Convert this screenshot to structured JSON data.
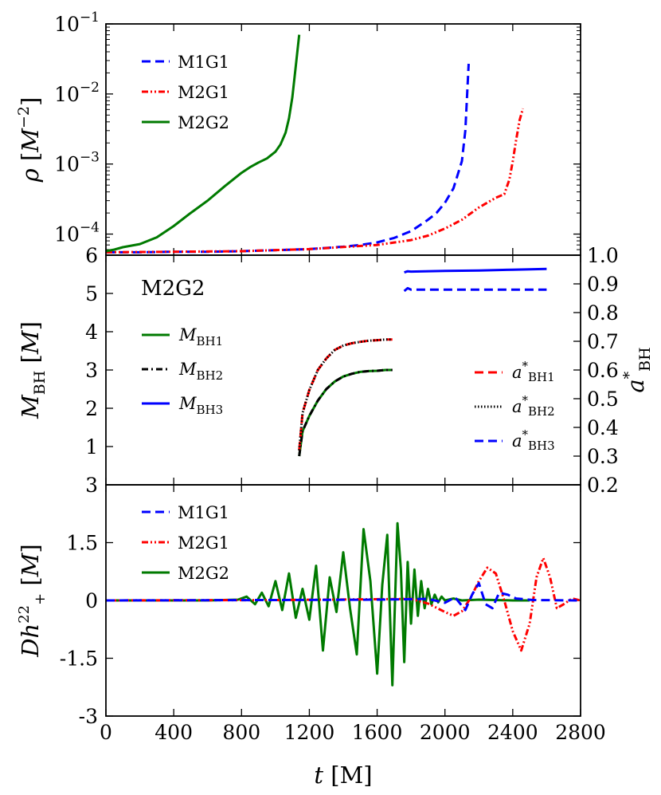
{
  "chart_data": [
    {
      "type": "line",
      "panel": "density",
      "ylabel": "ρ [M⁻²]",
      "ylabel_parts": {
        "sym": "ρ",
        "unit_open": "[",
        "unit": "M",
        "unit_exp": "−2",
        "unit_close": "]"
      },
      "yscale": "log",
      "ylim": [
        5e-05,
        0.1
      ],
      "xlim": [
        0,
        2800
      ],
      "yticks": [
        {
          "value": 0.1,
          "base": "10",
          "exp": "−1"
        },
        {
          "value": 0.01,
          "base": "10",
          "exp": "−2"
        },
        {
          "value": 0.001,
          "base": "10",
          "exp": "−3"
        },
        {
          "value": 0.0001,
          "base": "10",
          "exp": "−4"
        }
      ],
      "legend_position": "top-left",
      "series": [
        {
          "name": "M1G1",
          "color": "#0000ff",
          "style": "dashed",
          "x": [
            0,
            200,
            400,
            600,
            800,
            1000,
            1200,
            1400,
            1500,
            1600,
            1700,
            1800,
            1900,
            1950,
            2000,
            2050,
            2100,
            2120,
            2140
          ],
          "y": [
            5.5e-05,
            5.5e-05,
            5.6e-05,
            5.6e-05,
            5.7e-05,
            5.9e-05,
            6.1e-05,
            6.6e-05,
            7e-05,
            7.6e-05,
            8.8e-05,
            0.00011,
            0.00016,
            0.0002,
            0.00028,
            0.00045,
            0.0011,
            0.003,
            0.027
          ]
        },
        {
          "name": "M2G1",
          "color": "#ff0000",
          "style": "dash-dot-dot",
          "x": [
            0,
            400,
            800,
            1200,
            1600,
            1800,
            1900,
            2000,
            2100,
            2200,
            2300,
            2350,
            2380,
            2400,
            2420,
            2440,
            2460
          ],
          "y": [
            5.5e-05,
            5.6e-05,
            5.7e-05,
            6.1e-05,
            7e-05,
            8.2e-05,
            9.5e-05,
            0.00012,
            0.00016,
            0.00024,
            0.00033,
            0.00037,
            0.0006,
            0.0011,
            0.0022,
            0.0042,
            0.0062
          ]
        },
        {
          "name": "M2G2",
          "color": "#007a00",
          "style": "solid",
          "x": [
            0,
            50,
            100,
            200,
            300,
            400,
            500,
            600,
            700,
            800,
            850,
            900,
            950,
            1000,
            1030,
            1060,
            1080,
            1100,
            1120,
            1140
          ],
          "y": [
            5.7e-05,
            6e-05,
            6.5e-05,
            7.2e-05,
            9e-05,
            0.00013,
            0.0002,
            0.0003,
            0.00048,
            0.00075,
            0.0009,
            0.00105,
            0.0012,
            0.0015,
            0.0019,
            0.0028,
            0.0045,
            0.009,
            0.025,
            0.07
          ]
        }
      ]
    },
    {
      "type": "line",
      "panel": "black-hole",
      "annotation": "M2G2",
      "ylabel": "M_BH [M]",
      "ylabel_parts": {
        "sym": "M",
        "sub": "BH",
        "unit": "[M]"
      },
      "y2label": "a*_BH",
      "y2label_parts": {
        "sym": "a",
        "sup": "*",
        "sub": "BH"
      },
      "ylim": [
        0,
        6
      ],
      "y2lim": [
        0.2,
        1.0
      ],
      "xlim": [
        0,
        2800
      ],
      "yticks": [
        "6",
        "5",
        "4",
        "3",
        "2",
        "1"
      ],
      "y2ticks": [
        "1.0",
        "0.9",
        "0.8",
        "0.7",
        "0.6",
        "0.5",
        "0.4",
        "0.3",
        "0.2"
      ],
      "legend_left": [
        {
          "sym": "M",
          "sub": "BH1",
          "color": "#007a00",
          "style": "solid"
        },
        {
          "sym": "M",
          "sub": "BH2",
          "color": "#000000",
          "style": "dash-dot"
        },
        {
          "sym": "M",
          "sub": "BH3",
          "color": "#0000ff",
          "style": "solid"
        }
      ],
      "legend_right": [
        {
          "sym": "a",
          "sup": "*",
          "sub": "BH1",
          "color": "#ff0000",
          "style": "dashed"
        },
        {
          "sym": "a",
          "sup": "*",
          "sub": "BH2",
          "color": "#000000",
          "style": "dotted"
        },
        {
          "sym": "a",
          "sup": "*",
          "sub": "BH3",
          "color": "#0000ff",
          "style": "dashed"
        }
      ],
      "series": [
        {
          "name": "M_BH1",
          "axis": "left",
          "color": "#007a00",
          "style": "solid",
          "x": [
            1140,
            1160,
            1200,
            1250,
            1300,
            1350,
            1400,
            1450,
            1500,
            1550,
            1600,
            1650,
            1690
          ],
          "y": [
            0.75,
            1.4,
            1.8,
            2.2,
            2.5,
            2.7,
            2.83,
            2.9,
            2.95,
            2.97,
            2.98,
            3.0,
            3.0
          ]
        },
        {
          "name": "M_BH2",
          "axis": "left",
          "color": "#000000",
          "style": "dash-dot",
          "x": [
            1140,
            1160,
            1200,
            1250,
            1300,
            1350,
            1400,
            1450,
            1500,
            1550,
            1600,
            1650,
            1690
          ],
          "y": [
            0.75,
            1.4,
            1.8,
            2.2,
            2.5,
            2.7,
            2.83,
            2.9,
            2.95,
            2.97,
            2.98,
            3.0,
            3.0
          ]
        },
        {
          "name": "M_BH3",
          "axis": "left",
          "color": "#0000ff",
          "style": "solid",
          "x": [
            1760,
            1780,
            1800,
            2000,
            2200,
            2400,
            2600
          ],
          "y": [
            5.55,
            5.58,
            5.57,
            5.59,
            5.6,
            5.62,
            5.64
          ]
        },
        {
          "name": "a*_BH1",
          "axis": "right",
          "color": "#ff0000",
          "style": "dashed",
          "x": [
            1140,
            1160,
            1200,
            1250,
            1300,
            1350,
            1400,
            1450,
            1500,
            1550,
            1600,
            1650,
            1690
          ],
          "y": [
            0.32,
            0.45,
            0.53,
            0.6,
            0.64,
            0.67,
            0.685,
            0.693,
            0.698,
            0.702,
            0.704,
            0.706,
            0.706
          ]
        },
        {
          "name": "a*_BH2",
          "axis": "right",
          "color": "#000000",
          "style": "dotted",
          "x": [
            1140,
            1160,
            1200,
            1250,
            1300,
            1350,
            1400,
            1450,
            1500,
            1550,
            1600,
            1650,
            1690
          ],
          "y": [
            0.32,
            0.45,
            0.53,
            0.6,
            0.64,
            0.67,
            0.685,
            0.693,
            0.698,
            0.702,
            0.704,
            0.706,
            0.706
          ]
        },
        {
          "name": "a*_BH3",
          "axis": "right",
          "color": "#0000ff",
          "style": "dashed",
          "x": [
            1760,
            1780,
            1800,
            2000,
            2200,
            2400,
            2600
          ],
          "y": [
            0.875,
            0.885,
            0.88,
            0.88,
            0.88,
            0.88,
            0.88
          ]
        }
      ]
    },
    {
      "type": "line",
      "panel": "waveform",
      "ylabel": "Dh₊²² [M]",
      "ylabel_parts": {
        "sym": "Dh",
        "sup": "22",
        "sub": "+",
        "unit": "[M]"
      },
      "ylim": [
        -3,
        3
      ],
      "xlim": [
        0,
        2800
      ],
      "yticks": [
        {
          "value": 3,
          "label": "3"
        },
        {
          "value": 1.5,
          "label": "1.5"
        },
        {
          "value": 0,
          "label": "0"
        },
        {
          "value": -1.5,
          "label": "-1.5"
        },
        {
          "value": -3,
          "label": "-3"
        }
      ],
      "xlabel": "t [M]",
      "xlabel_parts": {
        "sym": "t",
        "unit": "[M]"
      },
      "xticks": [
        "0",
        "400",
        "800",
        "1200",
        "1600",
        "2000",
        "2400",
        "2800"
      ],
      "legend_position": "top-left",
      "series": [
        {
          "name": "M1G1",
          "color": "#0000ff",
          "style": "dashed",
          "x": [
            0,
            1000,
            1600,
            1900,
            2000,
            2060,
            2120,
            2160,
            2200,
            2240,
            2280,
            2320,
            2370,
            2420,
            2470,
            2520,
            2800
          ],
          "y": [
            0,
            0.01,
            0.02,
            0.04,
            -0.06,
            0.08,
            -0.25,
            0.15,
            0.45,
            -0.1,
            -0.2,
            0.2,
            0.15,
            0.05,
            0.03,
            0.01,
            0
          ]
        },
        {
          "name": "M2G1",
          "color": "#ff0000",
          "style": "dash-dot-dot",
          "x": [
            0,
            1000,
            1800,
            1900,
            2000,
            2050,
            2100,
            2150,
            2200,
            2250,
            2300,
            2350,
            2400,
            2450,
            2500,
            2540,
            2580,
            2620,
            2660,
            2700,
            2750,
            2800
          ],
          "y": [
            0,
            0.01,
            0.04,
            -0.08,
            -0.3,
            -0.4,
            -0.28,
            0.05,
            0.5,
            0.85,
            0.7,
            0.0,
            -0.8,
            -1.3,
            -0.6,
            0.6,
            1.1,
            0.6,
            -0.2,
            -0.1,
            0.05,
            0
          ]
        },
        {
          "name": "M2G2",
          "color": "#007a00",
          "style": "solid",
          "x": [
            0,
            600,
            780,
            830,
            880,
            920,
            960,
            1000,
            1040,
            1080,
            1120,
            1160,
            1200,
            1240,
            1280,
            1320,
            1360,
            1400,
            1440,
            1480,
            1520,
            1560,
            1600,
            1630,
            1660,
            1690,
            1720,
            1740,
            1760,
            1780,
            1800,
            1820,
            1840,
            1860,
            1880,
            1900,
            1920,
            1940,
            1960,
            1980,
            2000,
            2050,
            2100,
            2200,
            2400,
            2500
          ],
          "y": [
            0,
            0.0,
            0.02,
            0.1,
            -0.1,
            0.2,
            -0.15,
            0.5,
            -0.25,
            0.7,
            -0.45,
            0.3,
            -0.5,
            0.9,
            -1.3,
            0.6,
            -0.3,
            1.25,
            -0.2,
            -1.4,
            1.85,
            0.5,
            -1.9,
            0.4,
            1.7,
            -2.2,
            2.0,
            0.8,
            -1.6,
            1.0,
            -0.6,
            0.8,
            -0.4,
            0.5,
            -0.2,
            0.3,
            -0.1,
            0.15,
            -0.05,
            0.1,
            0.0,
            0.05,
            0.0,
            0.02,
            0.0,
            0.0
          ]
        }
      ]
    }
  ]
}
